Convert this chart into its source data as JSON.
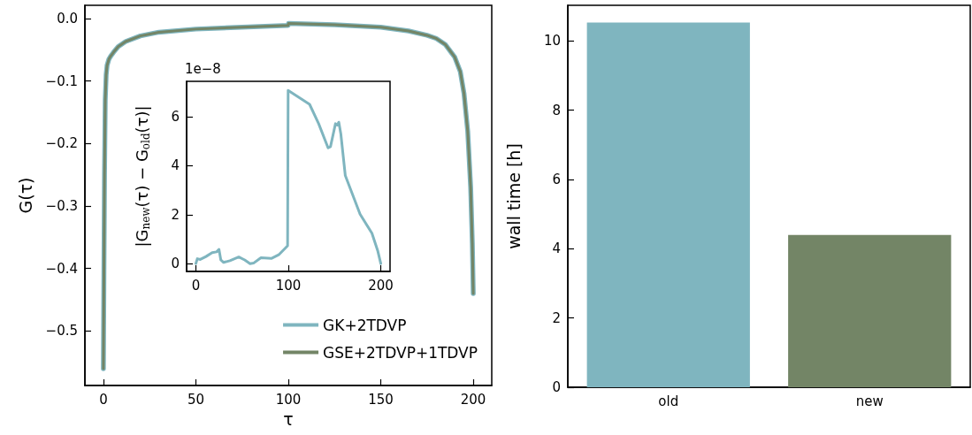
{
  "chart_data": [
    {
      "type": "line",
      "xlabel": "τ",
      "ylabel": "G(τ)",
      "legend": "bottom right",
      "x": [
        0,
        0.3,
        0.6,
        1,
        1.5,
        2,
        3,
        4,
        5.5,
        8,
        12,
        20,
        30,
        50,
        75,
        99.9,
        100.1,
        125,
        150,
        165,
        175,
        180,
        185,
        190,
        193,
        195,
        197,
        198.6,
        199.5,
        200
      ],
      "series": [
        {
          "name": "GK+2TDVP",
          "color": "#7fb5bf",
          "values": [
            -0.56,
            -0.4,
            -0.25,
            -0.13,
            -0.09,
            -0.075,
            -0.065,
            -0.06,
            -0.054,
            -0.045,
            -0.037,
            -0.028,
            -0.022,
            -0.017,
            -0.014,
            -0.011,
            -0.008,
            -0.01,
            -0.014,
            -0.02,
            -0.027,
            -0.032,
            -0.042,
            -0.062,
            -0.085,
            -0.12,
            -0.18,
            -0.27,
            -0.36,
            -0.44
          ]
        },
        {
          "name": "GSE+2TDVP+1TDVP",
          "color": "#738566",
          "values": [
            -0.56,
            -0.4,
            -0.25,
            -0.13,
            -0.09,
            -0.075,
            -0.065,
            -0.06,
            -0.054,
            -0.045,
            -0.037,
            -0.028,
            -0.022,
            -0.017,
            -0.014,
            -0.011,
            -0.008,
            -0.01,
            -0.014,
            -0.02,
            -0.027,
            -0.032,
            -0.042,
            -0.062,
            -0.085,
            -0.12,
            -0.18,
            -0.27,
            -0.36,
            -0.44
          ]
        }
      ],
      "xlim": [
        -10,
        210
      ],
      "xticks": [
        0,
        50,
        100,
        150,
        200
      ],
      "ylim": [
        -0.587,
        0.021
      ],
      "yticks": [
        {
          "value": -0.5,
          "label": "−0.5"
        },
        {
          "value": -0.4,
          "label": "−0.4"
        },
        {
          "value": -0.3,
          "label": "−0.3"
        },
        {
          "value": -0.2,
          "label": "−0.2"
        },
        {
          "value": -0.1,
          "label": "−0.1"
        },
        {
          "value": 0,
          "label": "0.0"
        }
      ]
    },
    {
      "type": "line",
      "ylabel": "|G$_{new}$(τ) − G$_{old}$(τ)|",
      "annotations": [
        "1e−8"
      ],
      "x": [
        0,
        1.6,
        4.8,
        11,
        17.6,
        22.4,
        25,
        27,
        30,
        36.8,
        46.4,
        52.8,
        58.6,
        62.4,
        70.4,
        81.6,
        89.6,
        99.2,
        99.8,
        123,
        132.8,
        143,
        145.6,
        151,
        153,
        154.6,
        156.8,
        161.6,
        177.6,
        190.4,
        196.8,
        200
      ],
      "series": [
        {
          "color": "#7fb5bf",
          "values": [
            0,
            0.2,
            0.17,
            0.29,
            0.45,
            0.48,
            0.58,
            0.15,
            0.05,
            0.12,
            0.27,
            0.15,
            0,
            0.02,
            0.24,
            0.21,
            0.36,
            0.73,
            7.08,
            6.51,
            5.72,
            4.73,
            4.78,
            5.72,
            5.66,
            5.78,
            5.3,
            3.6,
            2.02,
            1.24,
            0.51,
            0
          ]
        }
      ],
      "xlim": [
        -10,
        210
      ],
      "xticks": [
        0,
        100,
        200
      ],
      "ylim": [
        -0.32,
        7.45
      ],
      "yticks": [
        0,
        2,
        4,
        6
      ]
    },
    {
      "type": "bar",
      "ylabel": "wall time [h]",
      "categories": [
        "old",
        "new"
      ],
      "values": [
        10.53,
        4.4
      ],
      "colors": [
        "#7fb5bf",
        "#738566"
      ],
      "ylim": [
        0,
        11.03
      ],
      "yticks": [
        0,
        2,
        4,
        6,
        8,
        10
      ]
    }
  ]
}
